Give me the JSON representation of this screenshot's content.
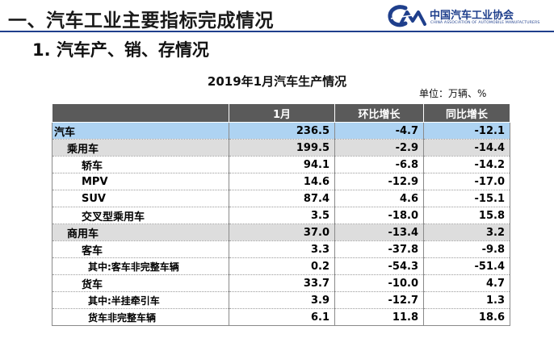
{
  "header": {
    "slide_title": "一、汽车工业主要指标完成情况",
    "logo_mark": "CM",
    "logo_text_cn": "中国汽车工业协会",
    "logo_text_en": "CHINA ASSOCIATION OF AUTOMOBILE MANUFACTURERS",
    "colors": {
      "brand": "#1f3f8c",
      "header_row": "#5a5a5a",
      "highlight_row": "#aed3f2",
      "group_row": "#dddddd"
    }
  },
  "section": {
    "title": "1. 汽车产、销、存情况"
  },
  "table": {
    "title": "2019年1月汽车生产情况",
    "unit": "单位：万辆、%",
    "columns": [
      "",
      "1月",
      "环比增长",
      "同比增长"
    ],
    "rows": [
      {
        "label": "汽车",
        "level": 0,
        "values": [
          "236.5",
          "-4.7",
          "-12.1"
        ]
      },
      {
        "label": "乘用车",
        "level": 1,
        "values": [
          "199.5",
          "-2.9",
          "-14.4"
        ]
      },
      {
        "label": "轿车",
        "level": 2,
        "values": [
          "94.1",
          "-6.8",
          "-14.2"
        ]
      },
      {
        "label": "MPV",
        "level": 2,
        "values": [
          "14.6",
          "-12.9",
          "-17.0"
        ]
      },
      {
        "label": "SUV",
        "level": 2,
        "values": [
          "87.4",
          "4.6",
          "-15.1"
        ]
      },
      {
        "label": "交叉型乘用车",
        "level": 2,
        "values": [
          "3.5",
          "-18.0",
          "15.8"
        ]
      },
      {
        "label": "商用车",
        "level": 1,
        "values": [
          "37.0",
          "-13.4",
          "3.2"
        ]
      },
      {
        "label": "客车",
        "level": 2,
        "values": [
          "3.3",
          "-37.8",
          "-9.8"
        ]
      },
      {
        "label": "其中:客车非完整车辆",
        "level": 3,
        "values": [
          "0.2",
          "-54.3",
          "-51.4"
        ]
      },
      {
        "label": "货车",
        "level": 2,
        "values": [
          "33.7",
          "-10.0",
          "4.7"
        ]
      },
      {
        "label": "其中:半挂牵引车",
        "level": 3,
        "values": [
          "3.9",
          "-12.7",
          "1.3"
        ]
      },
      {
        "label": "货车非完整车辆",
        "level": 3,
        "values": [
          "6.1",
          "11.8",
          "18.6"
        ]
      }
    ]
  }
}
